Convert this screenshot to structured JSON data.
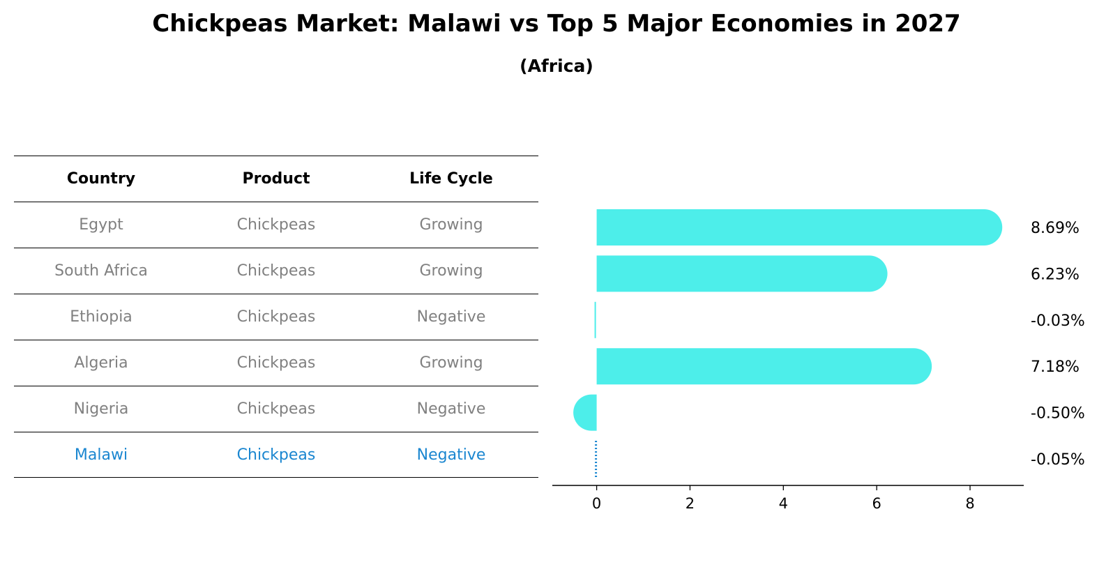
{
  "title": "Chickpeas Market: Malawi vs Top 5 Major Economies in 2027",
  "subtitle": "(Africa)",
  "table": {
    "headers": [
      "Country",
      "Product",
      "Life Cycle"
    ],
    "rows": [
      {
        "country": "Egypt",
        "product": "Chickpeas",
        "life_cycle": "Growing"
      },
      {
        "country": "South Africa",
        "product": "Chickpeas",
        "life_cycle": "Growing"
      },
      {
        "country": "Ethiopia",
        "product": "Chickpeas",
        "life_cycle": "Negative"
      },
      {
        "country": "Algeria",
        "product": "Chickpeas",
        "life_cycle": "Growing"
      },
      {
        "country": "Nigeria",
        "product": "Chickpeas",
        "life_cycle": "Negative"
      },
      {
        "country": "Malawi",
        "product": "Chickpeas",
        "life_cycle": "Negative"
      }
    ],
    "highlight_row": 5,
    "text_color": "#808080",
    "highlight_color": "#1a86d0"
  },
  "chart_data": {
    "type": "bar",
    "orientation": "horizontal",
    "categories": [
      "Egypt",
      "South Africa",
      "Ethiopia",
      "Algeria",
      "Nigeria",
      "Malawi"
    ],
    "values": [
      8.69,
      6.23,
      -0.03,
      7.18,
      -0.5,
      -0.05
    ],
    "value_labels": [
      "8.69%",
      "6.23%",
      "-0.03%",
      "7.18%",
      "-0.50%",
      "-0.05%"
    ],
    "xlim": [
      -0.95,
      9.15
    ],
    "xticks": [
      0,
      2,
      4,
      6,
      8
    ],
    "bar_color": "#4deeea",
    "highlight_color": "#1a86d0",
    "highlight_index": 5,
    "grid": false
  }
}
